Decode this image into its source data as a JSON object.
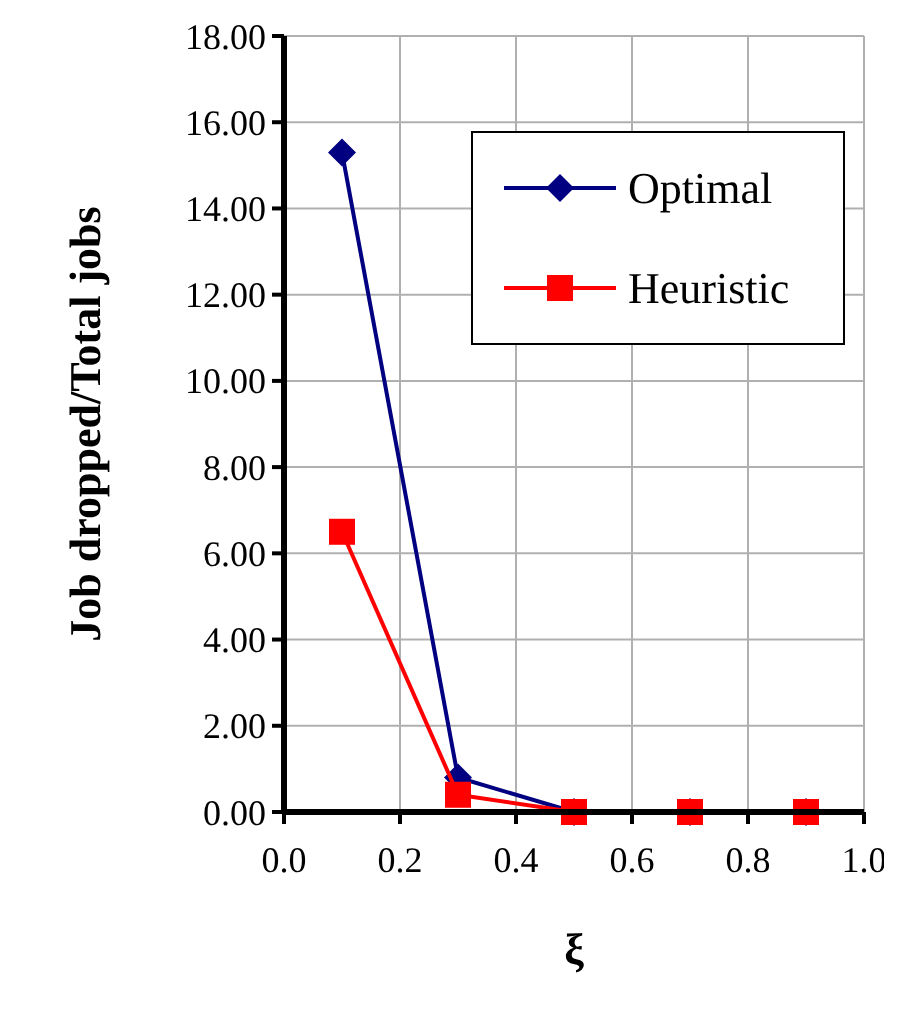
{
  "chart_data": {
    "type": "line",
    "xlabel": "ξ",
    "ylabel": "Job dropped/Total jobs",
    "x": [
      0.1,
      0.3,
      0.5,
      0.7,
      0.9
    ],
    "series": [
      {
        "name": "Optimal",
        "color": "#000080",
        "marker": "diamond",
        "values": [
          15.3,
          0.8,
          0,
          0,
          0
        ]
      },
      {
        "name": "Heuristic",
        "color": "#ff0000",
        "marker": "square",
        "values": [
          6.5,
          0.4,
          0,
          0,
          0
        ]
      }
    ],
    "xlim": [
      0,
      1
    ],
    "xticks": [
      {
        "value": 0,
        "label": "0.0"
      },
      {
        "value": 0.2,
        "label": "0.2"
      },
      {
        "value": 0.4,
        "label": "0.4"
      },
      {
        "value": 0.6,
        "label": "0.6"
      },
      {
        "value": 0.8,
        "label": "0.8"
      },
      {
        "value": 1,
        "label": "1.0"
      }
    ],
    "ylim": [
      0,
      18
    ],
    "yticks": [
      {
        "value": 0,
        "label": "0.00"
      },
      {
        "value": 2,
        "label": "2.00"
      },
      {
        "value": 4,
        "label": "4.00"
      },
      {
        "value": 6,
        "label": "6.00"
      },
      {
        "value": 8,
        "label": "8.00"
      },
      {
        "value": 10,
        "label": "10.00"
      },
      {
        "value": 12,
        "label": "12.00"
      },
      {
        "value": 14,
        "label": "14.00"
      },
      {
        "value": 16,
        "label": "16.00"
      },
      {
        "value": 18,
        "label": "18.00"
      }
    ],
    "grid": true,
    "legend": "top right",
    "line_style": "solid"
  }
}
